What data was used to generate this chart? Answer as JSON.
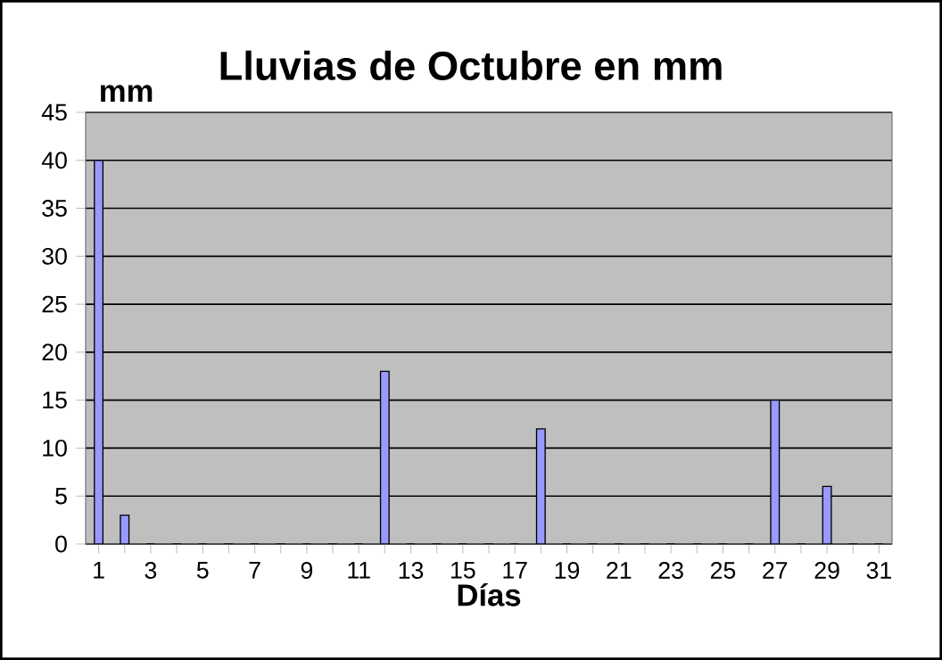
{
  "chart_data": {
    "type": "bar",
    "title": "Lluvias de Octubre en mm",
    "xlabel": "Días",
    "ylabel": "mm",
    "categories": [
      "1",
      null,
      "3",
      null,
      "5",
      null,
      "7",
      null,
      "9",
      null,
      "11",
      null,
      "13",
      null,
      "15",
      null,
      "17",
      null,
      "19",
      null,
      "21",
      null,
      "23",
      null,
      "25",
      null,
      "27",
      null,
      "29",
      null,
      "31"
    ],
    "values": [
      40,
      3,
      0,
      0,
      0,
      0,
      0,
      0,
      0,
      0,
      0,
      18,
      0,
      0,
      0,
      0,
      0,
      12,
      0,
      0,
      0,
      0,
      0,
      0,
      0,
      0,
      15,
      0,
      6,
      0,
      0
    ],
    "color": "#9999ff",
    "ylim": [
      0,
      45
    ],
    "yticks": [
      0,
      5,
      10,
      15,
      20,
      25,
      30,
      35,
      40,
      45
    ],
    "grid": "y"
  }
}
